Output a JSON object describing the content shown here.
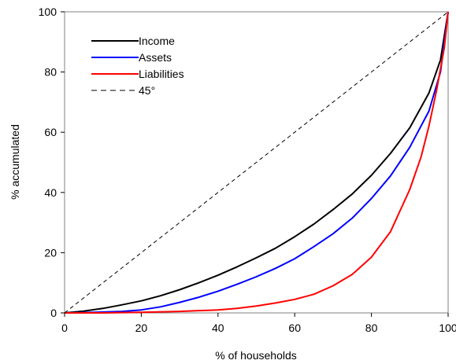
{
  "chart_data": {
    "type": "line",
    "title": "",
    "xlabel": "% of households",
    "ylabel": "% accumulated",
    "xlim": [
      0,
      100
    ],
    "ylim": [
      0,
      100
    ],
    "x_ticks": [
      "0",
      "20",
      "40",
      "60",
      "80",
      "100"
    ],
    "y_ticks": [
      "0",
      "20",
      "40",
      "60",
      "80",
      "100"
    ],
    "grid": false,
    "legend_position": "top-left",
    "series": [
      {
        "name": "Income",
        "color": "#000000",
        "dash": "solid",
        "x": [
          0,
          5,
          10,
          15,
          20,
          25,
          30,
          35,
          40,
          45,
          50,
          55,
          60,
          65,
          70,
          75,
          80,
          85,
          90,
          95,
          98,
          100
        ],
        "y": [
          0,
          0.6,
          1.5,
          2.7,
          4.0,
          5.7,
          7.7,
          10.0,
          12.5,
          15.3,
          18.3,
          21.5,
          25.3,
          29.5,
          34.3,
          39.5,
          45.7,
          53.0,
          61.5,
          73.0,
          84.0,
          100
        ]
      },
      {
        "name": "Assets",
        "color": "#0000ff",
        "dash": "solid",
        "x": [
          0,
          5,
          10,
          15,
          20,
          25,
          30,
          35,
          40,
          45,
          50,
          55,
          60,
          65,
          70,
          75,
          80,
          85,
          90,
          95,
          98,
          100
        ],
        "y": [
          0,
          0.1,
          0.3,
          0.5,
          1.0,
          2.0,
          3.5,
          5.2,
          7.2,
          9.5,
          12.0,
          14.8,
          18.0,
          22.0,
          26.3,
          31.5,
          38.0,
          45.5,
          55.0,
          67.0,
          80.0,
          100
        ]
      },
      {
        "name": "Liabilities",
        "color": "#ff0000",
        "dash": "solid",
        "x": [
          0,
          10,
          20,
          30,
          40,
          45,
          50,
          55,
          60,
          65,
          70,
          75,
          80,
          85,
          90,
          93,
          95,
          97,
          99,
          100
        ],
        "y": [
          0,
          0,
          0.2,
          0.5,
          1.0,
          1.5,
          2.3,
          3.3,
          4.5,
          6.2,
          9.0,
          12.8,
          18.5,
          27.0,
          41.0,
          52.0,
          62.0,
          74.0,
          88.0,
          100
        ]
      },
      {
        "name": "45°",
        "color": "#000000",
        "dash": "dashed",
        "x": [
          0,
          100
        ],
        "y": [
          0,
          100
        ]
      }
    ]
  }
}
